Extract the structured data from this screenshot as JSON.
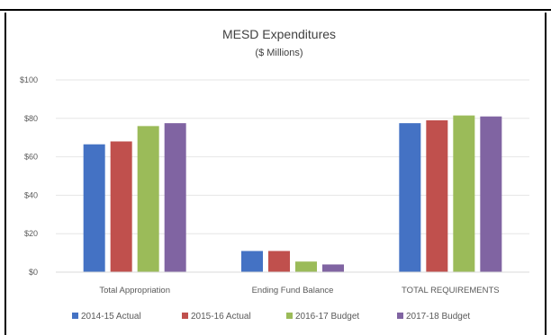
{
  "chart_data": {
    "type": "bar",
    "title": "MESD Expenditures",
    "subtitle": "($ Millions)",
    "categories": [
      "Total Appropriation",
      "Ending Fund Balance",
      "TOTAL REQUIREMENTS"
    ],
    "series": [
      {
        "name": "2014-15 Actual",
        "color": "#4472C4",
        "values": [
          66.5,
          11,
          77.5
        ]
      },
      {
        "name": "2015-16 Actual",
        "color": "#C0504D",
        "values": [
          68,
          11,
          79
        ]
      },
      {
        "name": "2016-17 Budget",
        "color": "#9BBB59",
        "values": [
          76,
          5.5,
          81.5
        ]
      },
      {
        "name": "2017-18 Budget",
        "color": "#8064A2",
        "values": [
          77.5,
          4,
          81
        ]
      }
    ],
    "ylim": [
      0,
      100
    ],
    "yticks": [
      0,
      20,
      40,
      60,
      80,
      100
    ],
    "ytick_labels": [
      "$0",
      "$20",
      "$40",
      "$60",
      "$80",
      "$100"
    ],
    "grid": true,
    "legend": "bottom"
  }
}
